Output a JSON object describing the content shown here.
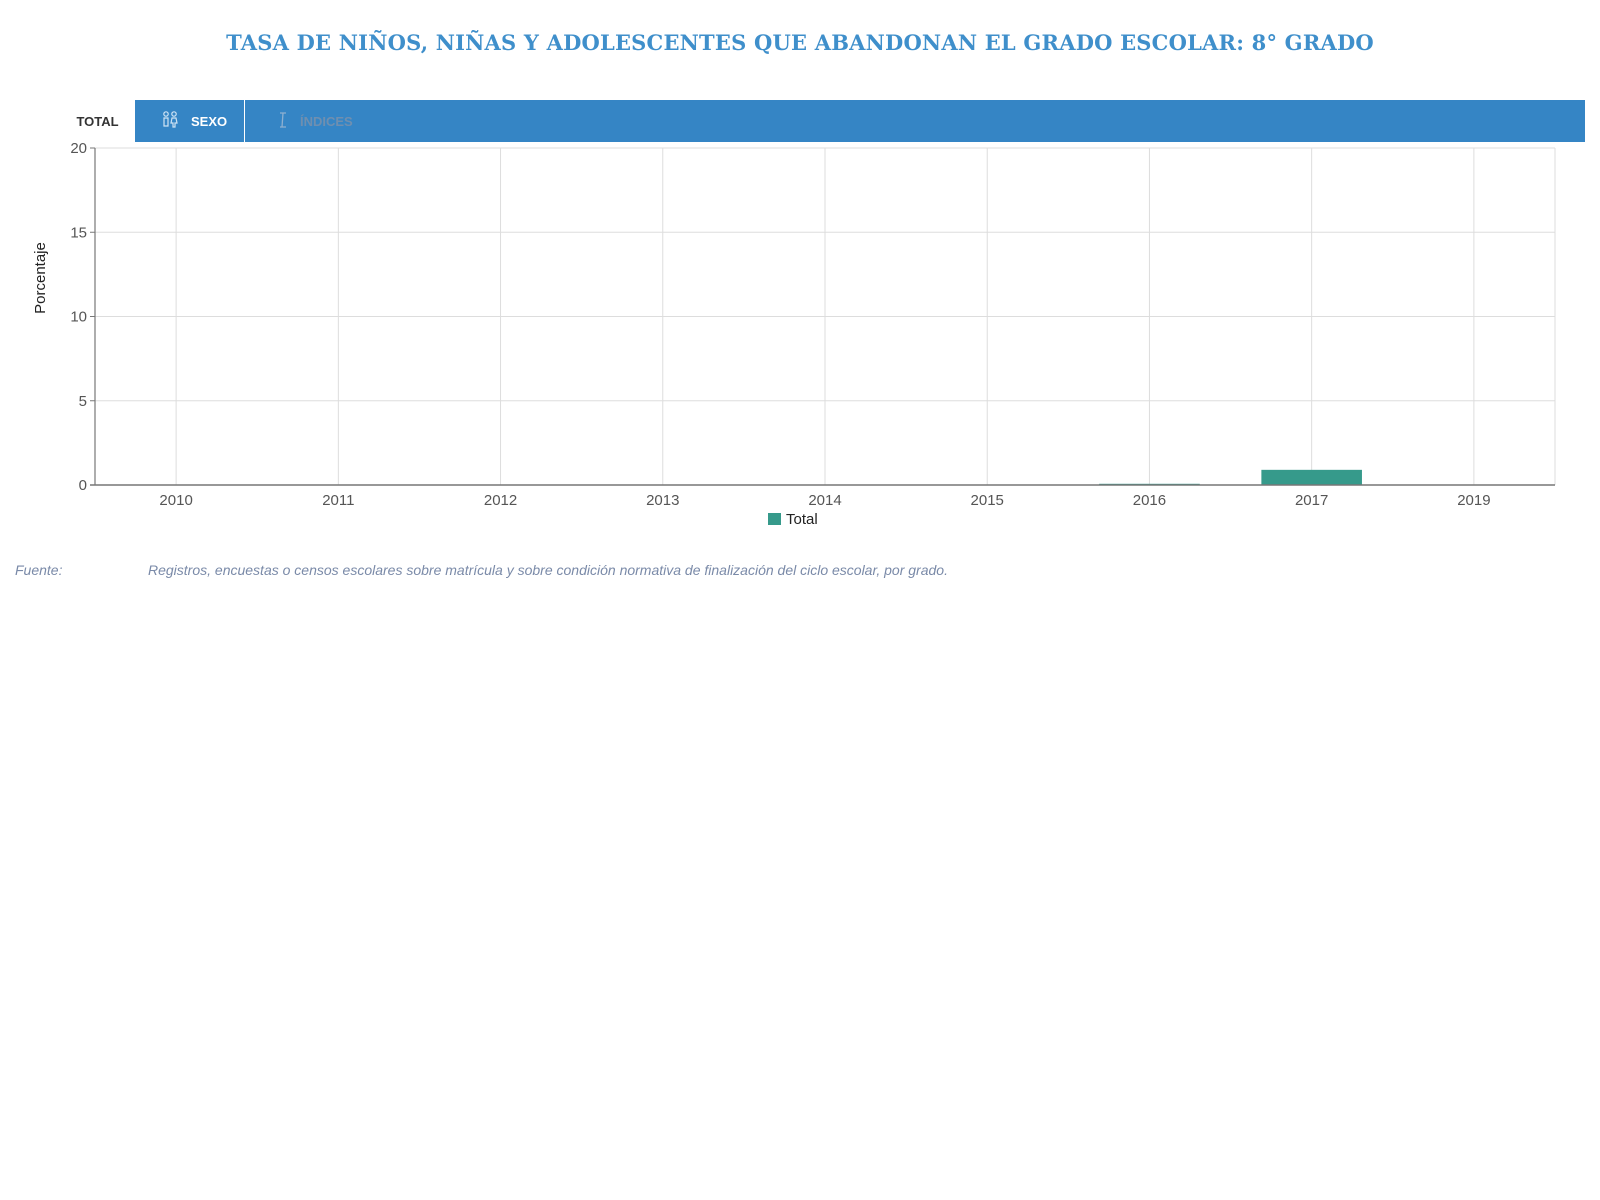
{
  "title": "TASA DE NIÑOS, NIÑAS Y ADOLESCENTES QUE ABANDONAN EL GRADO ESCOLAR: 8° GRADO",
  "tabs": {
    "total": "TOTAL",
    "sexo": "SEXO",
    "indices": "ÍNDICES"
  },
  "icons": {
    "sexo": "people-icon",
    "indices": "index-icon"
  },
  "colors": {
    "title": "#3f8fcb",
    "tabbar": "#3585c5",
    "bar": "#369a8b",
    "grid": "#dddddd",
    "source": "#7a8aa8"
  },
  "chart_data": {
    "type": "bar",
    "categories": [
      "2010",
      "2011",
      "2012",
      "2013",
      "2014",
      "2015",
      "2016",
      "2017",
      "2019"
    ],
    "series": [
      {
        "name": "Total",
        "values": [
          0,
          0,
          0,
          0,
          0,
          0,
          0.05,
          0.9,
          0
        ],
        "color": "#369a8b"
      }
    ],
    "title": "",
    "xlabel": "",
    "ylabel": "Porcentaje",
    "ylim": [
      0,
      20
    ],
    "yticks": [
      0,
      5,
      10,
      15,
      20
    ],
    "grid": true,
    "legend": "bottom-center"
  },
  "source": {
    "label": "Fuente:",
    "text": "Registros, encuestas o censos escolares sobre matrícula y sobre condición normativa de finalización del ciclo escolar, por grado."
  }
}
